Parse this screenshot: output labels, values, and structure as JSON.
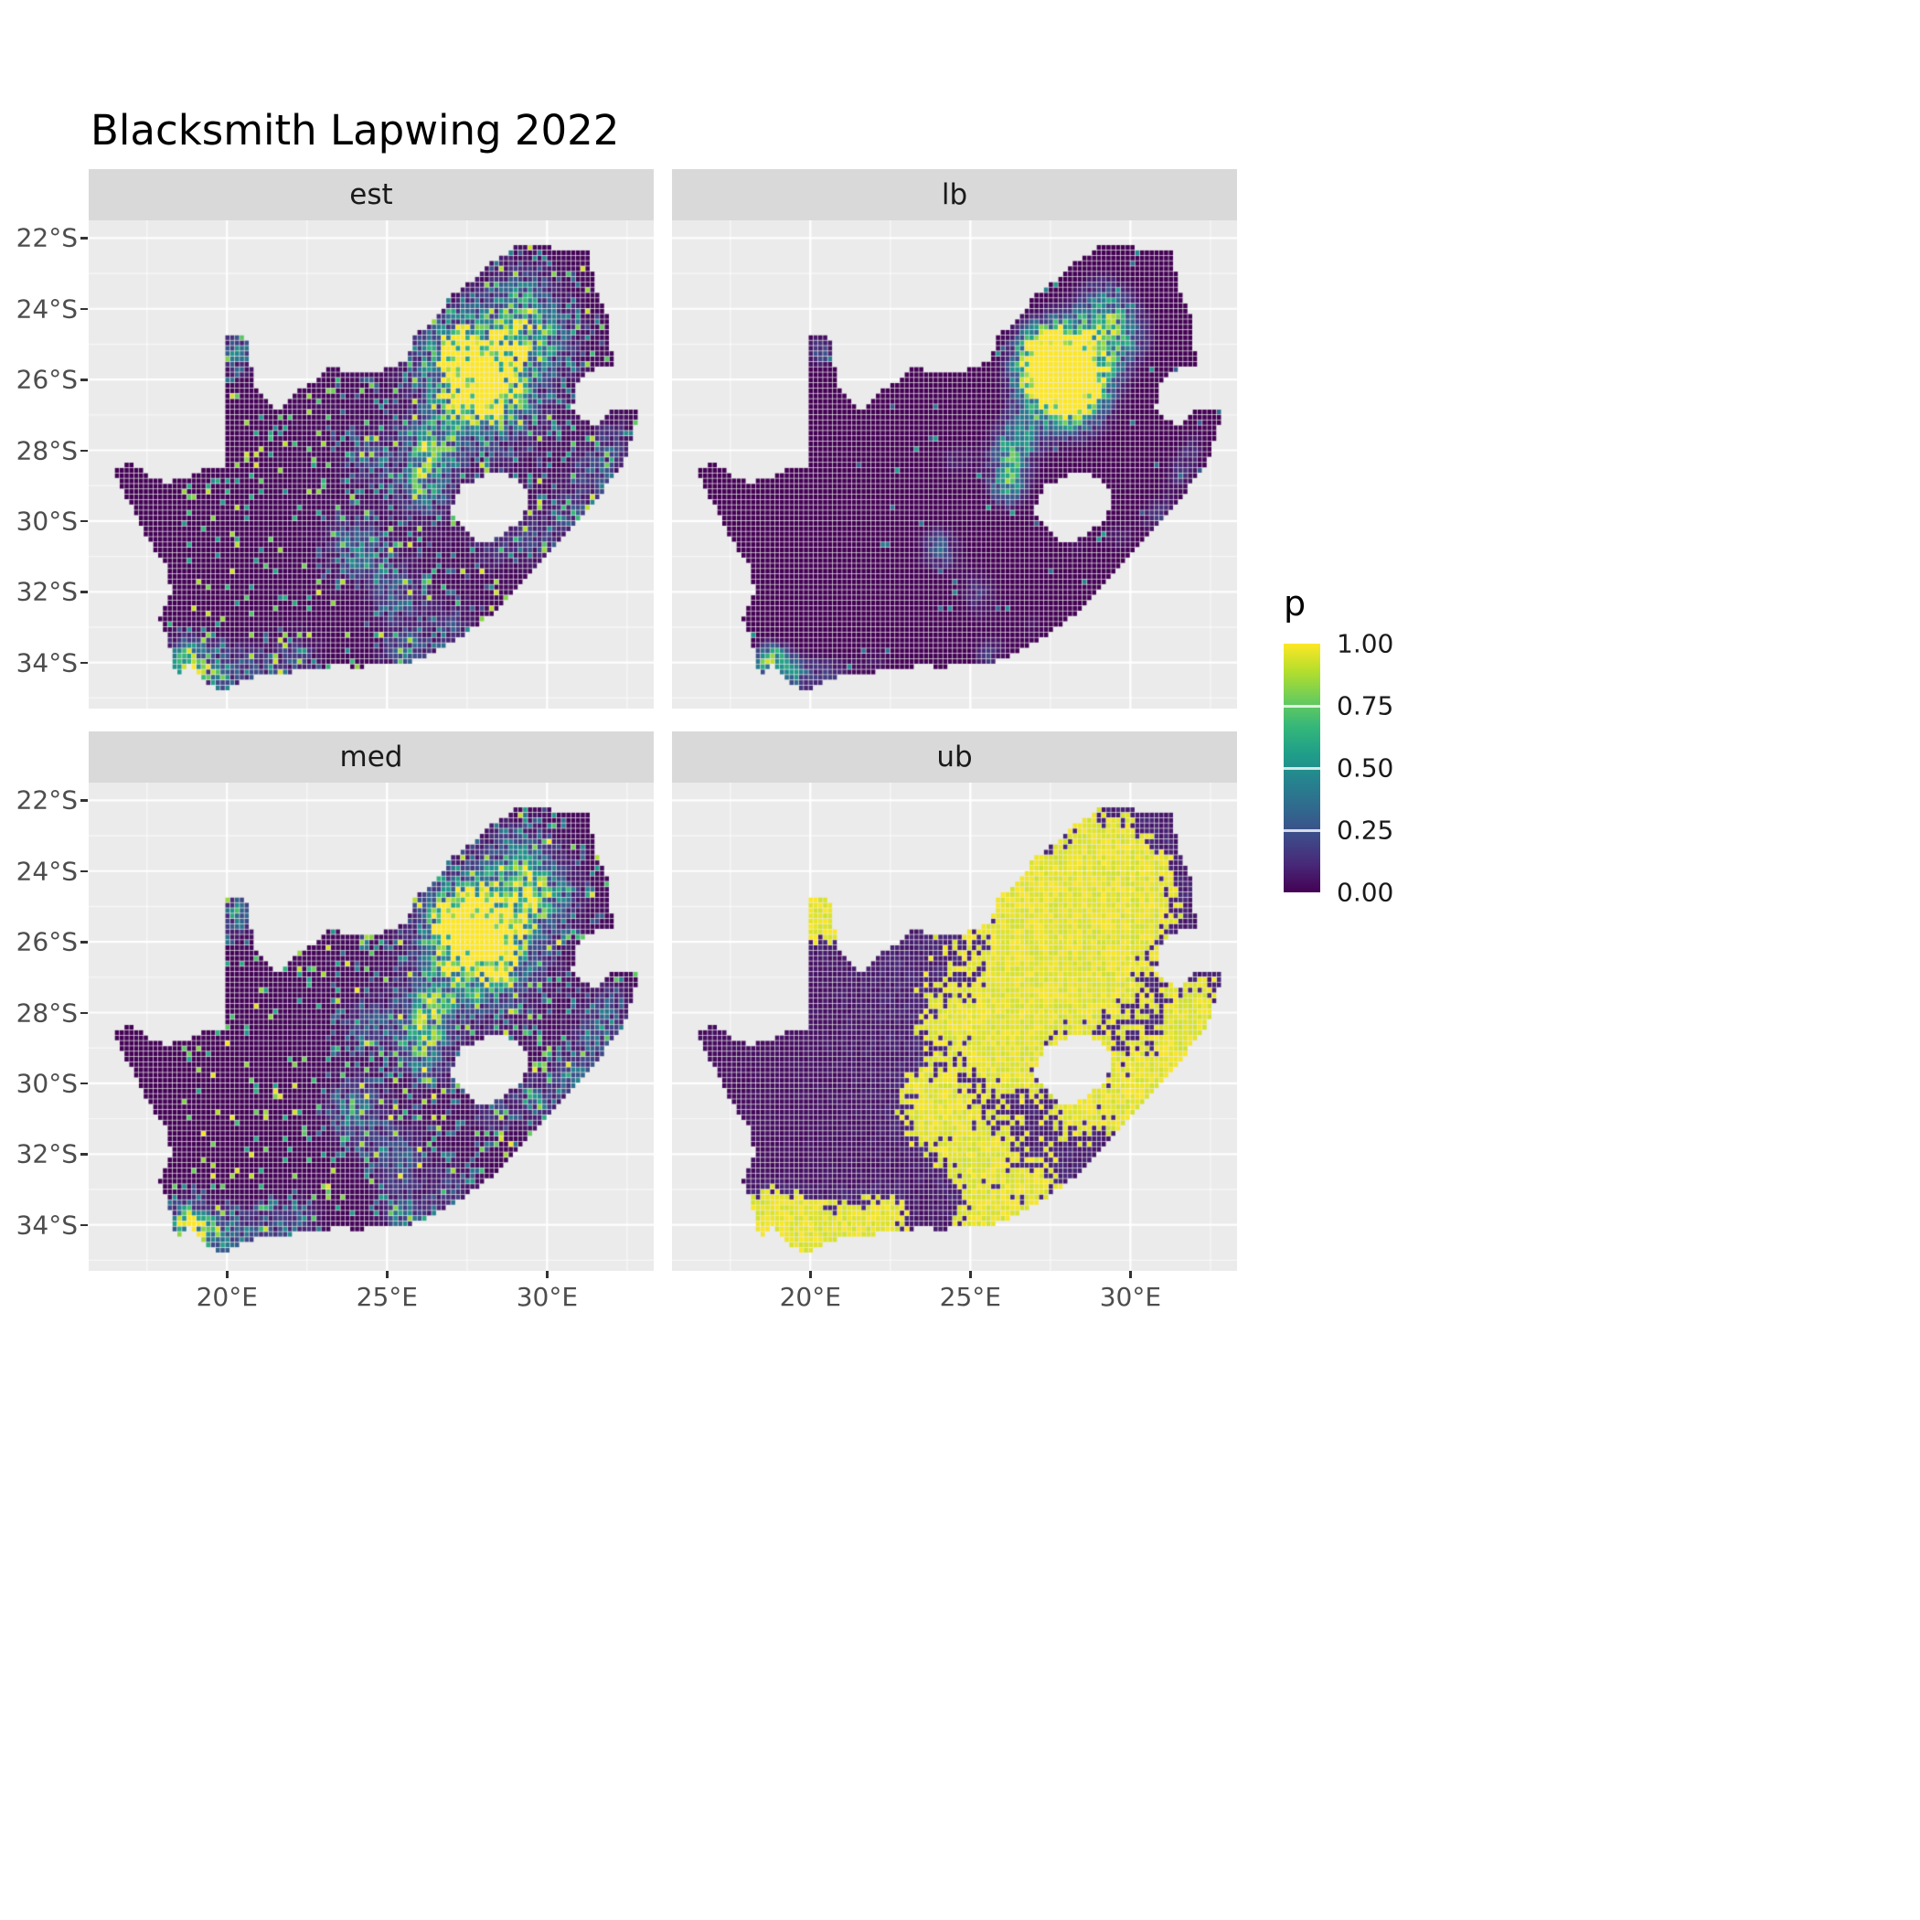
{
  "title": "Blacksmith Lapwing 2022",
  "theme": {
    "panel_bg": "#EBEBEB",
    "strip_bg": "#D9D9D9",
    "grid_major": "#FFFFFF",
    "grid_minor": "rgba(255,255,255,0.6)",
    "axis_text": "#4D4D4D",
    "strip_text": "#1A1A1A",
    "tick": "#333333",
    "background": "#FFFFFF"
  },
  "chart_data": {
    "type": "heatmap",
    "title": "Blacksmith Lapwing 2022",
    "region": "South Africa occurrence-probability raster, faceted by estimate type",
    "facets": [
      {
        "id": "est",
        "label": "est",
        "description": "point estimate: mostly p≈0 (dark purple) with strong yellow cluster near 28E,26S (Gauteng) and green speckle along south coast and east"
      },
      {
        "id": "lb",
        "label": "lb",
        "description": "lower bound: almost entirely p≈0 with small dim cluster near 28E,26S"
      },
      {
        "id": "med",
        "label": "med",
        "description": "median: similar to est, slightly brighter hotspot"
      },
      {
        "id": "ub",
        "label": "ub",
        "description": "upper bound: large saturated yellow (p≈1) patches over northeast interior, coasts and scattered cells elsewhere"
      }
    ],
    "x_axis": {
      "tick_labels": [
        "20°E",
        "25°E",
        "30°E"
      ],
      "tick_values": [
        20,
        25,
        30
      ],
      "range": [
        15.68,
        33.33
      ]
    },
    "y_axis": {
      "tick_labels": [
        "22°S",
        "24°S",
        "26°S",
        "28°S",
        "30°S",
        "32°S",
        "34°S"
      ],
      "tick_values": [
        22,
        24,
        26,
        28,
        30,
        32,
        34
      ],
      "range": [
        21.5,
        35.3
      ]
    },
    "legend": {
      "title": "p",
      "tick_labels": [
        "1.00",
        "0.75",
        "0.50",
        "0.25",
        "0.00"
      ],
      "tick_values": [
        1.0,
        0.75,
        0.5,
        0.25,
        0.0
      ],
      "range": [
        0,
        1
      ],
      "position": "right"
    },
    "colormap": {
      "name": "viridis",
      "stops": [
        [
          0.0,
          "#440154"
        ],
        [
          0.111,
          "#482878"
        ],
        [
          0.222,
          "#3E4A89"
        ],
        [
          0.333,
          "#31688E"
        ],
        [
          0.444,
          "#26828E"
        ],
        [
          0.556,
          "#1F9E89"
        ],
        [
          0.667,
          "#35B779"
        ],
        [
          0.778,
          "#6DCD59"
        ],
        [
          0.889,
          "#B4DE2C"
        ],
        [
          1.0,
          "#FDE725"
        ]
      ]
    },
    "generation": {
      "cell_deg": 0.15,
      "base": 0.05,
      "east_bias": {
        "lon": 27.5,
        "lat": -27.5,
        "sigma": 4.0,
        "amp": 0.16
      },
      "hotspots": [
        [
          28.05,
          -26.0,
          1.05,
          1.15
        ],
        [
          27.2,
          -25.3,
          0.8,
          0.45
        ],
        [
          29.2,
          -23.8,
          0.8,
          0.45
        ],
        [
          30.1,
          -24.8,
          0.7,
          0.35
        ],
        [
          26.15,
          -29.1,
          0.55,
          0.5
        ],
        [
          26.3,
          -27.9,
          0.6,
          0.5
        ],
        [
          24.0,
          -30.8,
          0.6,
          0.5
        ],
        [
          25.3,
          -32.1,
          0.6,
          0.4
        ],
        [
          18.7,
          -33.95,
          0.5,
          0.7
        ],
        [
          19.6,
          -34.35,
          0.6,
          0.5
        ],
        [
          20.9,
          -34.3,
          0.6,
          0.4
        ],
        [
          22.2,
          -33.9,
          0.5,
          0.35
        ],
        [
          25.6,
          -33.85,
          0.55,
          0.45
        ],
        [
          27.0,
          -33.0,
          0.5,
          0.3
        ],
        [
          30.9,
          -29.9,
          0.5,
          0.4
        ],
        [
          31.6,
          -28.7,
          0.5,
          0.35
        ],
        [
          20.3,
          -25.2,
          0.45,
          0.55
        ],
        [
          24.5,
          -28.3,
          0.5,
          0.3
        ],
        [
          29.6,
          -30.5,
          0.45,
          0.3
        ],
        [
          28.3,
          -30.7,
          0.4,
          0.25
        ],
        [
          32.0,
          -27.8,
          0.45,
          0.3
        ]
      ],
      "facet_rules": {
        "est": {
          "seed": 11,
          "mode": "speckle",
          "floor": 0.25,
          "gain": 1.5,
          "speckle_u": 0.93,
          "speckle_lo": 0.45,
          "imin": 0.06,
          "mid_u": 0.8,
          "mid_imin": 0.14
        },
        "lb": {
          "seed": 23,
          "mode": "lower",
          "offset": 0.3,
          "speckle_u": 0.985,
          "speckle_lo": 0.26,
          "imin": 0.1,
          "mid_u": 2.0,
          "mid_imin": 1.0
        },
        "med": {
          "seed": 37,
          "mode": "speckle",
          "floor": 0.35,
          "gain": 1.55,
          "speckle_u": 0.92,
          "speckle_lo": 0.5,
          "imin": 0.06,
          "mid_u": 0.78,
          "mid_imin": 0.14
        },
        "ub": {
          "seed": 51,
          "mode": "upper",
          "thresh": 0.175,
          "gain": 0.45,
          "ugain": 0.8
        }
      },
      "outline": [
        [
          16.45,
          -28.6
        ],
        [
          17.05,
          -28.35
        ],
        [
          17.5,
          -28.7
        ],
        [
          18.1,
          -28.9
        ],
        [
          18.75,
          -28.8
        ],
        [
          19.3,
          -28.5
        ],
        [
          19.98,
          -28.43
        ],
        [
          19.98,
          -24.77
        ],
        [
          20.6,
          -24.77
        ],
        [
          20.78,
          -25.6
        ],
        [
          20.95,
          -26.35
        ],
        [
          21.6,
          -26.85
        ],
        [
          22.15,
          -26.35
        ],
        [
          22.7,
          -26.1
        ],
        [
          23.2,
          -25.65
        ],
        [
          23.9,
          -25.8
        ],
        [
          24.7,
          -25.8
        ],
        [
          25.55,
          -25.5
        ],
        [
          25.9,
          -24.75
        ],
        [
          26.45,
          -24.35
        ],
        [
          26.95,
          -23.7
        ],
        [
          27.75,
          -23.15
        ],
        [
          28.3,
          -22.7
        ],
        [
          29.05,
          -22.25
        ],
        [
          29.45,
          -22.15
        ],
        [
          30.2,
          -22.3
        ],
        [
          31.3,
          -22.4
        ],
        [
          31.55,
          -23.5
        ],
        [
          31.75,
          -23.9
        ],
        [
          31.95,
          -24.4
        ],
        [
          32.02,
          -25.1
        ],
        [
          32.05,
          -25.65
        ],
        [
          31.4,
          -25.75
        ],
        [
          30.9,
          -26.15
        ],
        [
          30.8,
          -26.8
        ],
        [
          31.1,
          -27.1
        ],
        [
          31.5,
          -27.32
        ],
        [
          32.1,
          -26.86
        ],
        [
          32.89,
          -26.86
        ],
        [
          32.6,
          -27.9
        ],
        [
          32.3,
          -28.5
        ],
        [
          31.75,
          -29.15
        ],
        [
          31.05,
          -29.9
        ],
        [
          30.4,
          -30.65
        ],
        [
          29.7,
          -31.3
        ],
        [
          28.95,
          -32.0
        ],
        [
          28.2,
          -32.7
        ],
        [
          27.4,
          -33.25
        ],
        [
          26.5,
          -33.7
        ],
        [
          25.65,
          -34.03
        ],
        [
          25.0,
          -33.97
        ],
        [
          24.2,
          -34.15
        ],
        [
          23.4,
          -34.1
        ],
        [
          22.6,
          -34.2
        ],
        [
          21.8,
          -34.3
        ],
        [
          21.0,
          -34.4
        ],
        [
          20.4,
          -34.55
        ],
        [
          20.0,
          -34.82
        ],
        [
          19.4,
          -34.65
        ],
        [
          19.1,
          -34.35
        ],
        [
          18.8,
          -34.1
        ],
        [
          18.45,
          -34.35
        ],
        [
          18.3,
          -33.9
        ],
        [
          18.15,
          -33.3
        ],
        [
          17.86,
          -32.8
        ],
        [
          18.25,
          -32.1
        ],
        [
          18.2,
          -31.4
        ],
        [
          17.6,
          -30.6
        ],
        [
          17.05,
          -29.65
        ],
        [
          16.7,
          -29.1
        ]
      ],
      "lesotho_hole": [
        [
          27.0,
          -29.65
        ],
        [
          27.35,
          -29.0
        ],
        [
          27.75,
          -28.85
        ],
        [
          28.35,
          -28.6
        ],
        [
          28.95,
          -28.75
        ],
        [
          29.35,
          -29.05
        ],
        [
          29.45,
          -29.55
        ],
        [
          29.2,
          -29.95
        ],
        [
          28.7,
          -30.35
        ],
        [
          28.1,
          -30.65
        ],
        [
          27.55,
          -30.4
        ],
        [
          27.2,
          -30.0
        ]
      ]
    }
  }
}
